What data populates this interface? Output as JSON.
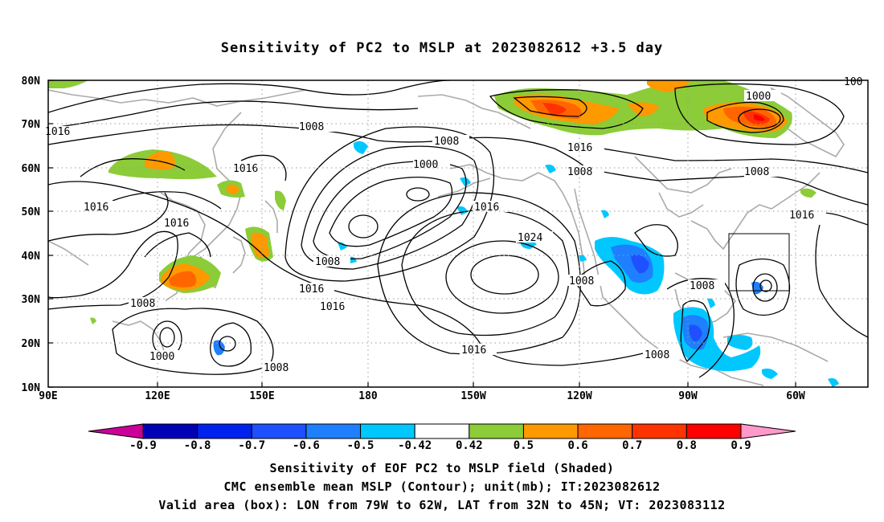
{
  "title": "Sensitivity of PC2 to MSLP at 2023082612 +3.5 day",
  "map": {
    "lat_labels": [
      "80N",
      "70N",
      "60N",
      "50N",
      "40N",
      "30N",
      "20N",
      "10N"
    ],
    "lon_labels": [
      "90E",
      "120E",
      "150E",
      "180",
      "150W",
      "120W",
      "90W",
      "60W"
    ],
    "contour_labels": [
      "1008",
      "1016",
      "1016",
      "1016",
      "1016",
      "1008",
      "1000",
      "1008",
      "1008",
      "1016",
      "1016",
      "1024",
      "1008",
      "1016",
      "1016",
      "1008",
      "1016",
      "1008",
      "1000",
      "1008",
      "1016",
      "1008",
      "1008",
      "1000",
      "100"
    ],
    "shading_palette": {
      "neg_09": "#cc0099",
      "neg_08": "#0000b4",
      "neg_07": "#0022ee",
      "neg_06": "#1e50ff",
      "neg_05": "#1e7fff",
      "neg_042": "#00c8ff",
      "neutral": "#ffffff",
      "pos_042": "#8ccc38",
      "pos_05": "#ff9900",
      "pos_06": "#ff6600",
      "pos_07": "#ff3300",
      "pos_08": "#ff0000",
      "pos_09": "#ff99cc"
    },
    "contour_color": "#000000",
    "coastline_color": "#aaaaaa"
  },
  "colorbar": {
    "labels": [
      "-0.9",
      "-0.8",
      "-0.7",
      "-0.6",
      "-0.5",
      "-0.42",
      "0.42",
      "0.5",
      "0.6",
      "0.7",
      "0.8",
      "0.9"
    ],
    "colors": [
      "#0000b4",
      "#0022ee",
      "#1e50ff",
      "#1e7fff",
      "#00c8ff",
      "#ffffff",
      "#8ccc38",
      "#ff9900",
      "#ff6600",
      "#ff3300",
      "#ff0000"
    ],
    "low_end_color": "#cc0099",
    "high_end_color": "#ff99cc"
  },
  "captions": {
    "line1": "Sensitivity of EOF PC2 to MSLP field (Shaded)",
    "line2": "CMC ensemble mean MSLP (Contour); unit(mb); IT:2023082612",
    "line3": "Valid area (box): LON from 79W to 62W, LAT from 32N to 45N; VT: 2023083112"
  }
}
